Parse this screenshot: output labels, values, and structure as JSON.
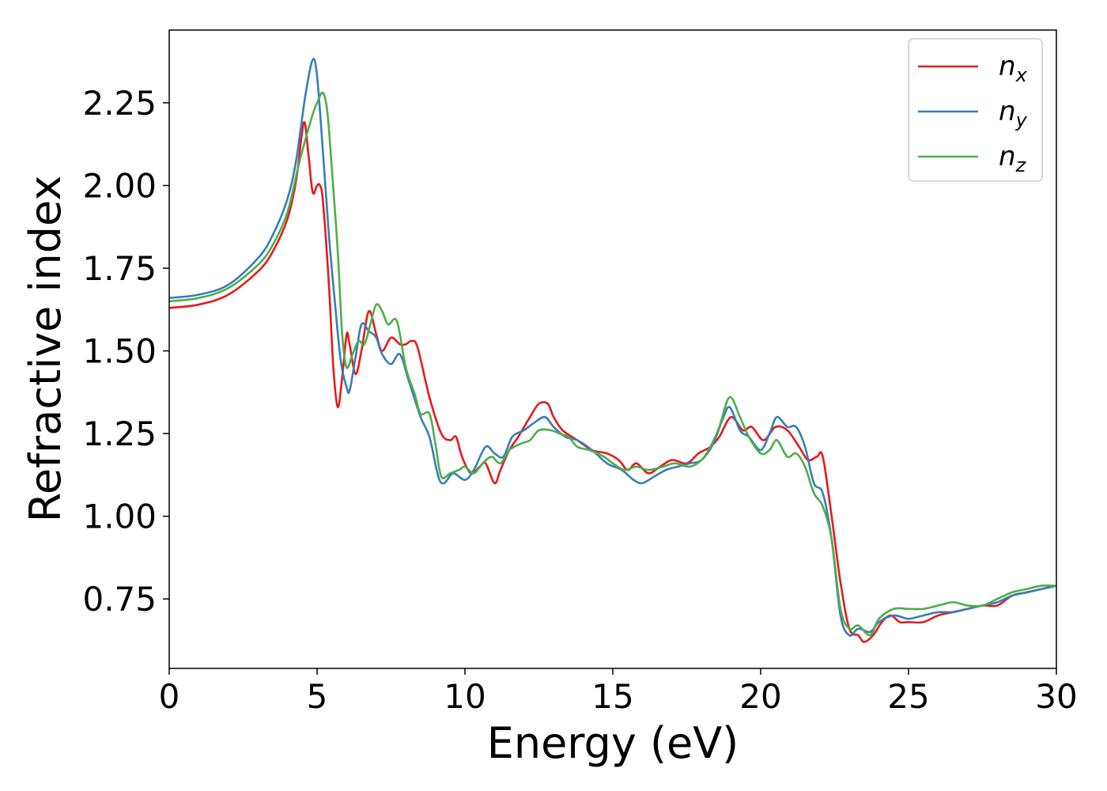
{
  "chart_data": {
    "type": "line",
    "title": "",
    "xlabel": "Energy (eV)",
    "ylabel": "Refractive index",
    "xlim": [
      0,
      30
    ],
    "ylim": [
      0.54,
      2.47
    ],
    "xticks": [
      0,
      5,
      10,
      15,
      20,
      25,
      30
    ],
    "xtick_labels": [
      "0",
      "5",
      "10",
      "15",
      "20",
      "25",
      "30"
    ],
    "yticks": [
      0.75,
      1.0,
      1.25,
      1.5,
      1.75,
      2.0,
      2.25
    ],
    "ytick_labels": [
      "0.75",
      "1.00",
      "1.25",
      "1.50",
      "1.75",
      "2.00",
      "2.25"
    ],
    "grid": false,
    "legend_position": "top-right",
    "series": [
      {
        "name": "n",
        "sub": "x",
        "color": "#e41a1c",
        "points": [
          [
            0,
            1.63
          ],
          [
            1,
            1.64
          ],
          [
            2,
            1.67
          ],
          [
            3,
            1.74
          ],
          [
            3.5,
            1.8
          ],
          [
            4,
            1.9
          ],
          [
            4.3,
            2.02
          ],
          [
            4.55,
            2.19
          ],
          [
            4.7,
            2.1
          ],
          [
            4.85,
            1.98
          ],
          [
            5.0,
            2.0
          ],
          [
            5.1,
            2.0
          ],
          [
            5.2,
            1.95
          ],
          [
            5.4,
            1.7
          ],
          [
            5.55,
            1.45
          ],
          [
            5.7,
            1.33
          ],
          [
            5.85,
            1.42
          ],
          [
            6.0,
            1.55
          ],
          [
            6.1,
            1.52
          ],
          [
            6.3,
            1.43
          ],
          [
            6.5,
            1.5
          ],
          [
            6.75,
            1.62
          ],
          [
            7.0,
            1.55
          ],
          [
            7.2,
            1.5
          ],
          [
            7.5,
            1.54
          ],
          [
            7.8,
            1.52
          ],
          [
            8.0,
            1.52
          ],
          [
            8.2,
            1.53
          ],
          [
            8.4,
            1.51
          ],
          [
            8.8,
            1.36
          ],
          [
            9.2,
            1.25
          ],
          [
            9.5,
            1.23
          ],
          [
            9.7,
            1.24
          ],
          [
            9.9,
            1.18
          ],
          [
            10.2,
            1.13
          ],
          [
            10.5,
            1.15
          ],
          [
            10.7,
            1.16
          ],
          [
            11.0,
            1.1
          ],
          [
            11.2,
            1.14
          ],
          [
            11.5,
            1.2
          ],
          [
            11.8,
            1.24
          ],
          [
            12.2,
            1.3
          ],
          [
            12.5,
            1.34
          ],
          [
            12.8,
            1.34
          ],
          [
            13.0,
            1.3
          ],
          [
            13.3,
            1.26
          ],
          [
            13.8,
            1.23
          ],
          [
            14.3,
            1.2
          ],
          [
            14.8,
            1.19
          ],
          [
            15.2,
            1.17
          ],
          [
            15.5,
            1.14
          ],
          [
            15.8,
            1.16
          ],
          [
            16.2,
            1.13
          ],
          [
            16.6,
            1.15
          ],
          [
            17.0,
            1.17
          ],
          [
            17.5,
            1.16
          ],
          [
            17.9,
            1.19
          ],
          [
            18.3,
            1.21
          ],
          [
            18.6,
            1.24
          ],
          [
            19.0,
            1.3
          ],
          [
            19.4,
            1.26
          ],
          [
            19.7,
            1.27
          ],
          [
            20.1,
            1.23
          ],
          [
            20.5,
            1.27
          ],
          [
            20.9,
            1.26
          ],
          [
            21.3,
            1.21
          ],
          [
            21.6,
            1.17
          ],
          [
            21.9,
            1.18
          ],
          [
            22.1,
            1.18
          ],
          [
            22.4,
            1.0
          ],
          [
            22.7,
            0.8
          ],
          [
            23.0,
            0.66
          ],
          [
            23.3,
            0.64
          ],
          [
            23.5,
            0.62
          ],
          [
            23.8,
            0.64
          ],
          [
            24.1,
            0.68
          ],
          [
            24.4,
            0.7
          ],
          [
            24.7,
            0.68
          ],
          [
            25.0,
            0.68
          ],
          [
            25.5,
            0.68
          ],
          [
            26.0,
            0.7
          ],
          [
            26.5,
            0.71
          ],
          [
            27.0,
            0.72
          ],
          [
            27.5,
            0.73
          ],
          [
            28.0,
            0.73
          ],
          [
            28.5,
            0.76
          ],
          [
            29.0,
            0.77
          ],
          [
            29.5,
            0.78
          ],
          [
            30,
            0.79
          ]
        ]
      },
      {
        "name": "n",
        "sub": "y",
        "color": "#377eb8",
        "points": [
          [
            0,
            1.66
          ],
          [
            1,
            1.67
          ],
          [
            2,
            1.7
          ],
          [
            3,
            1.78
          ],
          [
            3.5,
            1.85
          ],
          [
            4,
            1.96
          ],
          [
            4.3,
            2.08
          ],
          [
            4.6,
            2.27
          ],
          [
            4.85,
            2.38
          ],
          [
            5.0,
            2.33
          ],
          [
            5.2,
            2.1
          ],
          [
            5.4,
            1.85
          ],
          [
            5.6,
            1.65
          ],
          [
            5.8,
            1.47
          ],
          [
            6.0,
            1.39
          ],
          [
            6.1,
            1.38
          ],
          [
            6.3,
            1.48
          ],
          [
            6.5,
            1.58
          ],
          [
            6.75,
            1.56
          ],
          [
            7.0,
            1.54
          ],
          [
            7.2,
            1.49
          ],
          [
            7.5,
            1.46
          ],
          [
            7.8,
            1.49
          ],
          [
            8.1,
            1.41
          ],
          [
            8.5,
            1.3
          ],
          [
            8.8,
            1.24
          ],
          [
            9.1,
            1.12
          ],
          [
            9.3,
            1.1
          ],
          [
            9.6,
            1.13
          ],
          [
            10.0,
            1.11
          ],
          [
            10.3,
            1.14
          ],
          [
            10.7,
            1.21
          ],
          [
            11.0,
            1.19
          ],
          [
            11.3,
            1.18
          ],
          [
            11.6,
            1.24
          ],
          [
            12.0,
            1.26
          ],
          [
            12.3,
            1.28
          ],
          [
            12.7,
            1.3
          ],
          [
            13.0,
            1.27
          ],
          [
            13.4,
            1.24
          ],
          [
            13.8,
            1.23
          ],
          [
            14.3,
            1.2
          ],
          [
            14.8,
            1.16
          ],
          [
            15.3,
            1.14
          ],
          [
            15.7,
            1.11
          ],
          [
            16.0,
            1.1
          ],
          [
            16.4,
            1.12
          ],
          [
            16.8,
            1.14
          ],
          [
            17.2,
            1.15
          ],
          [
            17.6,
            1.16
          ],
          [
            18.0,
            1.17
          ],
          [
            18.4,
            1.22
          ],
          [
            18.7,
            1.29
          ],
          [
            18.95,
            1.33
          ],
          [
            19.3,
            1.26
          ],
          [
            19.6,
            1.24
          ],
          [
            20.0,
            1.2
          ],
          [
            20.3,
            1.25
          ],
          [
            20.55,
            1.3
          ],
          [
            20.9,
            1.27
          ],
          [
            21.2,
            1.27
          ],
          [
            21.5,
            1.21
          ],
          [
            21.8,
            1.1
          ],
          [
            22.1,
            1.07
          ],
          [
            22.4,
            0.93
          ],
          [
            22.7,
            0.7
          ],
          [
            23.0,
            0.64
          ],
          [
            23.3,
            0.66
          ],
          [
            23.7,
            0.65
          ],
          [
            24.0,
            0.68
          ],
          [
            24.5,
            0.7
          ],
          [
            25.0,
            0.69
          ],
          [
            25.5,
            0.7
          ],
          [
            26.0,
            0.71
          ],
          [
            26.5,
            0.71
          ],
          [
            27.0,
            0.72
          ],
          [
            27.5,
            0.73
          ],
          [
            28.0,
            0.74
          ],
          [
            28.5,
            0.76
          ],
          [
            29.0,
            0.77
          ],
          [
            29.5,
            0.78
          ],
          [
            30,
            0.79
          ]
        ]
      },
      {
        "name": "n",
        "sub": "z",
        "color": "#4daf4a",
        "points": [
          [
            0,
            1.65
          ],
          [
            1,
            1.66
          ],
          [
            2,
            1.69
          ],
          [
            3,
            1.76
          ],
          [
            3.5,
            1.82
          ],
          [
            4,
            1.92
          ],
          [
            4.4,
            2.07
          ],
          [
            4.8,
            2.2
          ],
          [
            5.0,
            2.25
          ],
          [
            5.2,
            2.28
          ],
          [
            5.35,
            2.22
          ],
          [
            5.5,
            2.05
          ],
          [
            5.7,
            1.8
          ],
          [
            5.85,
            1.55
          ],
          [
            6.0,
            1.45
          ],
          [
            6.2,
            1.49
          ],
          [
            6.4,
            1.53
          ],
          [
            6.6,
            1.52
          ],
          [
            6.8,
            1.58
          ],
          [
            7.0,
            1.64
          ],
          [
            7.2,
            1.62
          ],
          [
            7.4,
            1.58
          ],
          [
            7.7,
            1.59
          ],
          [
            8.0,
            1.45
          ],
          [
            8.3,
            1.37
          ],
          [
            8.5,
            1.31
          ],
          [
            8.8,
            1.31
          ],
          [
            9.0,
            1.22
          ],
          [
            9.2,
            1.12
          ],
          [
            9.5,
            1.13
          ],
          [
            9.8,
            1.14
          ],
          [
            10.0,
            1.15
          ],
          [
            10.3,
            1.13
          ],
          [
            10.6,
            1.16
          ],
          [
            10.9,
            1.18
          ],
          [
            11.2,
            1.16
          ],
          [
            11.5,
            1.2
          ],
          [
            11.9,
            1.22
          ],
          [
            12.2,
            1.23
          ],
          [
            12.5,
            1.26
          ],
          [
            12.9,
            1.26
          ],
          [
            13.2,
            1.25
          ],
          [
            13.5,
            1.24
          ],
          [
            13.8,
            1.21
          ],
          [
            14.2,
            1.2
          ],
          [
            14.7,
            1.18
          ],
          [
            15.0,
            1.16
          ],
          [
            15.4,
            1.14
          ],
          [
            15.8,
            1.15
          ],
          [
            16.2,
            1.14
          ],
          [
            16.7,
            1.15
          ],
          [
            17.1,
            1.16
          ],
          [
            17.6,
            1.15
          ],
          [
            18.0,
            1.17
          ],
          [
            18.3,
            1.21
          ],
          [
            18.6,
            1.27
          ],
          [
            18.95,
            1.36
          ],
          [
            19.3,
            1.3
          ],
          [
            19.6,
            1.24
          ],
          [
            20.0,
            1.19
          ],
          [
            20.3,
            1.2
          ],
          [
            20.55,
            1.23
          ],
          [
            20.9,
            1.18
          ],
          [
            21.2,
            1.19
          ],
          [
            21.5,
            1.15
          ],
          [
            21.8,
            1.07
          ],
          [
            22.1,
            1.03
          ],
          [
            22.4,
            0.93
          ],
          [
            22.7,
            0.72
          ],
          [
            23.0,
            0.66
          ],
          [
            23.3,
            0.67
          ],
          [
            23.7,
            0.64
          ],
          [
            24.0,
            0.69
          ],
          [
            24.5,
            0.72
          ],
          [
            25.0,
            0.72
          ],
          [
            25.5,
            0.72
          ],
          [
            26.0,
            0.73
          ],
          [
            26.5,
            0.74
          ],
          [
            27.0,
            0.73
          ],
          [
            27.5,
            0.73
          ],
          [
            28.0,
            0.75
          ],
          [
            28.5,
            0.77
          ],
          [
            29.0,
            0.78
          ],
          [
            29.5,
            0.79
          ],
          [
            30,
            0.79
          ]
        ]
      }
    ]
  }
}
